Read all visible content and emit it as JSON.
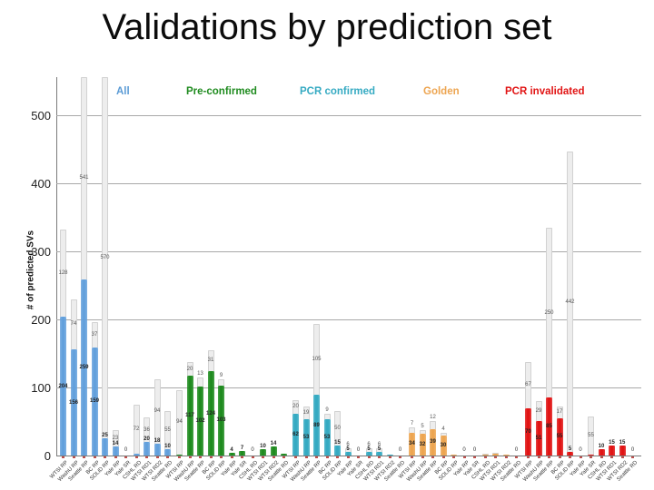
{
  "title": "Validations by prediction set",
  "y_axis": {
    "label": "# of predicted SVs",
    "ticks": [
      0,
      100,
      200,
      300,
      400,
      500
    ]
  },
  "legend": [
    {
      "label": "All",
      "color": "#5b9bd5"
    },
    {
      "label": "Pre-confirmed",
      "color": "#1f8b1f"
    },
    {
      "label": "PCR confirmed",
      "color": "#35aac2"
    },
    {
      "label": "Golden",
      "color": "#eda551"
    },
    {
      "label": "PCR invalidated",
      "color": "#e11414"
    }
  ],
  "chart_data": {
    "type": "bar",
    "subtype": "grouped-stacked",
    "title": "Validations by prediction set",
    "xlabel": "",
    "ylabel": "# of predicted SVs",
    "ylim": [
      0,
      555
    ],
    "grid": true,
    "gray_color": "#ededed",
    "gray_meaning": "remainder of predicted SVs (not in this validation class)",
    "categories": [
      "WTSI RP",
      "WashU RP",
      "Seattle RP",
      "BC RP",
      "SOLiD RP",
      "Yale RP",
      "Yale SR",
      "CSHL RD",
      "WTSI RD1",
      "WTSI RD2",
      "Seattle RD"
    ],
    "groups": [
      {
        "name": "All",
        "color": "#63a0dc",
        "validated": [
          204,
          156,
          259,
          159,
          25,
          14,
          0,
          3,
          20,
          18,
          10
        ],
        "remainder": [
          128,
          74,
          541,
          37,
          570,
          23,
          0,
          72,
          36,
          94,
          55
        ]
      },
      {
        "name": "Pre-confirmed",
        "color": "#1f8b1f",
        "validated": [
          2,
          117,
          102,
          124,
          103,
          4,
          7,
          0,
          10,
          14,
          3
        ],
        "remainder": [
          94,
          20,
          13,
          31,
          9,
          0,
          0,
          0,
          0,
          0,
          0
        ]
      },
      {
        "name": "PCR confirmed",
        "color": "#35aac2",
        "validated": [
          62,
          53,
          89,
          53,
          15,
          5,
          0,
          5,
          5,
          2,
          0
        ],
        "remainder": [
          20,
          19,
          105,
          9,
          50,
          6,
          0,
          6,
          6,
          0,
          0
        ]
      },
      {
        "name": "Golden",
        "color": "#eda551",
        "validated": [
          34,
          32,
          39,
          30,
          1,
          0,
          0,
          2,
          3,
          1,
          0
        ],
        "remainder": [
          7,
          5,
          12,
          4,
          0,
          0,
          0,
          1,
          1,
          0,
          0
        ]
      },
      {
        "name": "PCR invalidated",
        "color": "#e11414",
        "validated": [
          70,
          51,
          85,
          55,
          5,
          0,
          2,
          10,
          15,
          15,
          0
        ],
        "remainder": [
          67,
          29,
          250,
          17,
          442,
          0,
          55,
          0,
          0,
          0,
          0
        ]
      }
    ]
  }
}
